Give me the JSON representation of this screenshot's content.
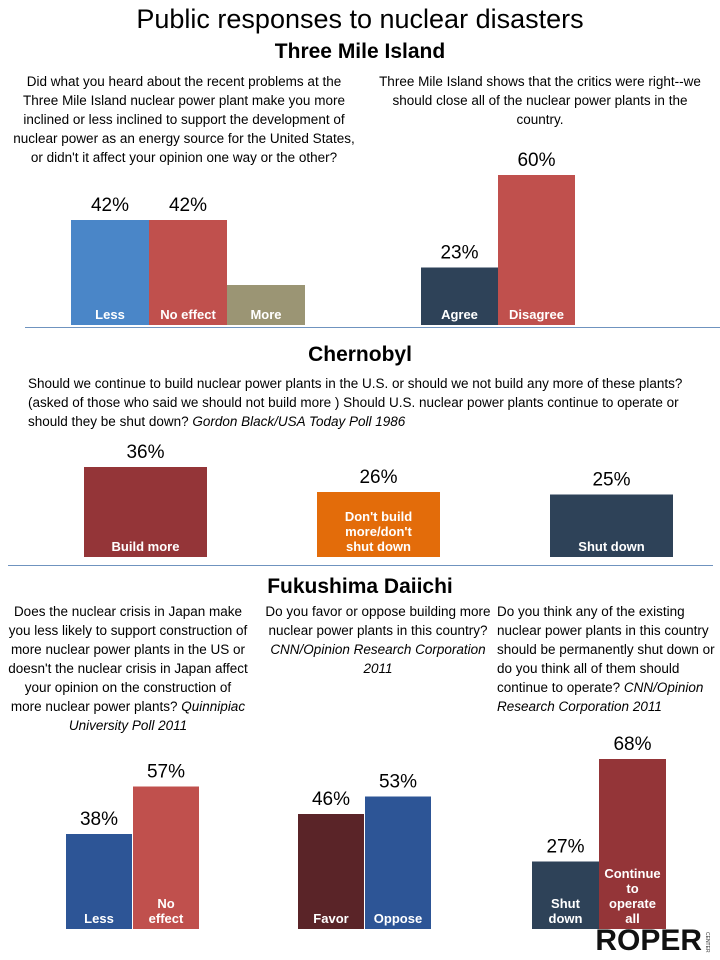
{
  "title": "Public responses to nuclear disasters",
  "sections": [
    {
      "heading": "Three Mile Island"
    },
    {
      "heading": "Chernobyl"
    },
    {
      "heading": "Fukushima Daiichi"
    }
  ],
  "questions": {
    "tmi_q1": "Did what you heard about the recent problems at the Three Mile Island nuclear power plant make you more inclined or less inclined to support the development of nuclear power as an energy source for the United States, or didn't it affect your opinion one way or the other?",
    "tmi_q2": "Three Mile Island shows that the critics were right--we should close all of the nuclear power plants in the country.",
    "chern_q1": "Should we continue to build nuclear power plants in the U.S. or should we not build any more of these plants? (asked of those who said we should not build more ) Should U.S. nuclear power plants continue to operate or should they be shut down?",
    "chern_q1_source": "Gordon Black/USA Today Poll 1986",
    "fuku_q1": "Does the nuclear crisis in Japan make you less likely to support construction of more nuclear power plants in the US or doesn't the nuclear crisis in Japan affect your opinion on the construction of more nuclear power plants?",
    "fuku_q1_source": "Quinnipiac University Poll 2011",
    "fuku_q2": "Do you favor or oppose building more nuclear power plants in this country?",
    "fuku_q2_source": "CNN/Opinion Research Corporation 2011",
    "fuku_q3": "Do you think any of the existing nuclear power plants in this country should be permanently shut down or do you think all of them should continue to operate?",
    "fuku_q3_source": "CNN/Opinion Research Corporation 2011"
  },
  "logo": {
    "text": "ROPER",
    "sub": "CENTER"
  },
  "chart_data": [
    {
      "type": "bar",
      "id": "tmi1",
      "categories": [
        "Less",
        "No effect",
        "More"
      ],
      "values": [
        42,
        42,
        16
      ],
      "value_labels": [
        "42%",
        "42%",
        ""
      ],
      "colors": [
        "#4a86c8",
        "#c0504d",
        "#9b9574"
      ]
    },
    {
      "type": "bar",
      "id": "tmi2",
      "categories": [
        "Agree",
        "Disagree"
      ],
      "values": [
        23,
        60
      ],
      "value_labels": [
        "23%",
        "60%"
      ],
      "colors": [
        "#2e4258",
        "#c0504d"
      ]
    },
    {
      "type": "bar",
      "id": "chern",
      "categories": [
        "Build more",
        "Don't build more/don't shut down",
        "Shut down"
      ],
      "values": [
        36,
        26,
        25
      ],
      "value_labels": [
        "36%",
        "26%",
        "25%"
      ],
      "colors": [
        "#943538",
        "#e36c0a",
        "#2e4258"
      ]
    },
    {
      "type": "bar",
      "id": "fuku1",
      "categories": [
        "Less",
        "No effect"
      ],
      "values": [
        38,
        57
      ],
      "value_labels": [
        "38%",
        "57%"
      ],
      "colors": [
        "#2d5596",
        "#c0504d"
      ]
    },
    {
      "type": "bar",
      "id": "fuku2",
      "categories": [
        "Favor",
        "Oppose"
      ],
      "values": [
        46,
        53
      ],
      "value_labels": [
        "46%",
        "53%"
      ],
      "colors": [
        "#5a2428",
        "#2d5596"
      ]
    },
    {
      "type": "bar",
      "id": "fuku3",
      "categories": [
        "Shut down",
        "Continue to operate all"
      ],
      "values": [
        27,
        68
      ],
      "value_labels": [
        "27%",
        "68%"
      ],
      "colors": [
        "#2e4258",
        "#943538"
      ]
    }
  ]
}
